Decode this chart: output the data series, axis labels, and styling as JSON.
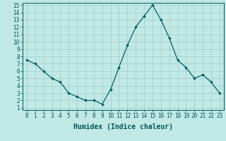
{
  "xlabel": "Humidex (Indice chaleur)",
  "x": [
    0,
    1,
    2,
    3,
    4,
    5,
    6,
    7,
    8,
    9,
    10,
    11,
    12,
    13,
    14,
    15,
    16,
    17,
    18,
    19,
    20,
    21,
    22,
    23
  ],
  "y": [
    7.5,
    7.0,
    6.0,
    5.0,
    4.5,
    3.0,
    2.5,
    2.0,
    2.0,
    1.5,
    3.5,
    6.5,
    9.5,
    12.0,
    13.5,
    15.0,
    13.0,
    10.5,
    7.5,
    6.5,
    5.0,
    5.5,
    4.5,
    3.0
  ],
  "line_color": "#006060",
  "marker": "D",
  "marker_size": 1.8,
  "line_width": 0.9,
  "bg_color": "#c0e8e4",
  "grid_color": "#a0cccc",
  "ylim": [
    1,
    15
  ],
  "xlim": [
    -0.5,
    23.5
  ],
  "yticks": [
    1,
    2,
    3,
    4,
    5,
    6,
    7,
    8,
    9,
    10,
    11,
    12,
    13,
    14,
    15
  ],
  "xticks": [
    0,
    1,
    2,
    3,
    4,
    5,
    6,
    7,
    8,
    9,
    10,
    11,
    12,
    13,
    14,
    15,
    16,
    17,
    18,
    19,
    20,
    21,
    22,
    23
  ],
  "tick_fontsize": 5.5,
  "label_fontsize": 7.0,
  "axis_color": "#005858",
  "tick_color": "#005858",
  "spine_color": "#005858"
}
